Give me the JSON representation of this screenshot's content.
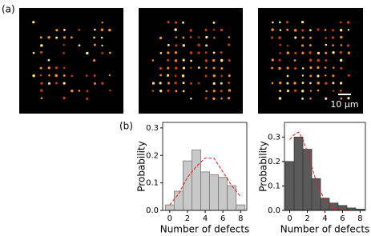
{
  "figure": {
    "panel_a_label": "(a)",
    "panel_b_label": "(b)",
    "scale_bar_label": "10 μm"
  },
  "chart_data": [
    {
      "type": "bar",
      "x": [
        0,
        1,
        2,
        3,
        4,
        5,
        6,
        7,
        8
      ],
      "values": [
        0.02,
        0.07,
        0.18,
        0.22,
        0.14,
        0.13,
        0.12,
        0.09,
        0.02
      ],
      "color": "#c8c8c8",
      "edgecolor": "#7a7a7a",
      "fit": {
        "x": [
          0,
          1,
          2,
          3,
          4,
          5,
          6,
          7,
          8
        ],
        "values": [
          0.02,
          0.06,
          0.12,
          0.16,
          0.19,
          0.19,
          0.14,
          0.09,
          0.05
        ],
        "color": "#e41a1c",
        "dashed": true
      },
      "xlim": [
        -0.8,
        8.7
      ],
      "ylim": [
        0,
        0.32
      ],
      "xticks": [
        0,
        2,
        4,
        6,
        8
      ],
      "yticks": [
        {
          "value": 0,
          "label": "0.0"
        },
        0.1,
        0.2,
        0.3
      ],
      "xlabel": "Number of defects",
      "ylabel": "Probability"
    },
    {
      "type": "bar",
      "x": [
        0,
        1,
        2,
        3,
        4,
        5,
        6,
        7,
        8
      ],
      "values": [
        0.2,
        0.3,
        0.25,
        0.13,
        0.05,
        0.03,
        0.02,
        0.01,
        0.005
      ],
      "color": "#5a5a5a",
      "edgecolor": "#3a3a3a",
      "fit": {
        "x": [
          0,
          0.5,
          1,
          1.5,
          2,
          3,
          4,
          5,
          6,
          7,
          8
        ],
        "values": [
          0.29,
          0.31,
          0.32,
          0.29,
          0.24,
          0.12,
          0.04,
          0.01,
          0.003,
          0.001,
          0
        ],
        "color": "#e41a1c",
        "dashed": true
      },
      "xlim": [
        -0.6,
        8.6
      ],
      "ylim": [
        0,
        0.36
      ],
      "xticks": [
        0,
        2,
        4,
        6,
        8
      ],
      "yticks": [
        {
          "value": 0,
          "label": "0.0"
        },
        0.1,
        0.2,
        0.3
      ],
      "xlabel": "Number of defects",
      "ylabel": "Probability"
    }
  ]
}
